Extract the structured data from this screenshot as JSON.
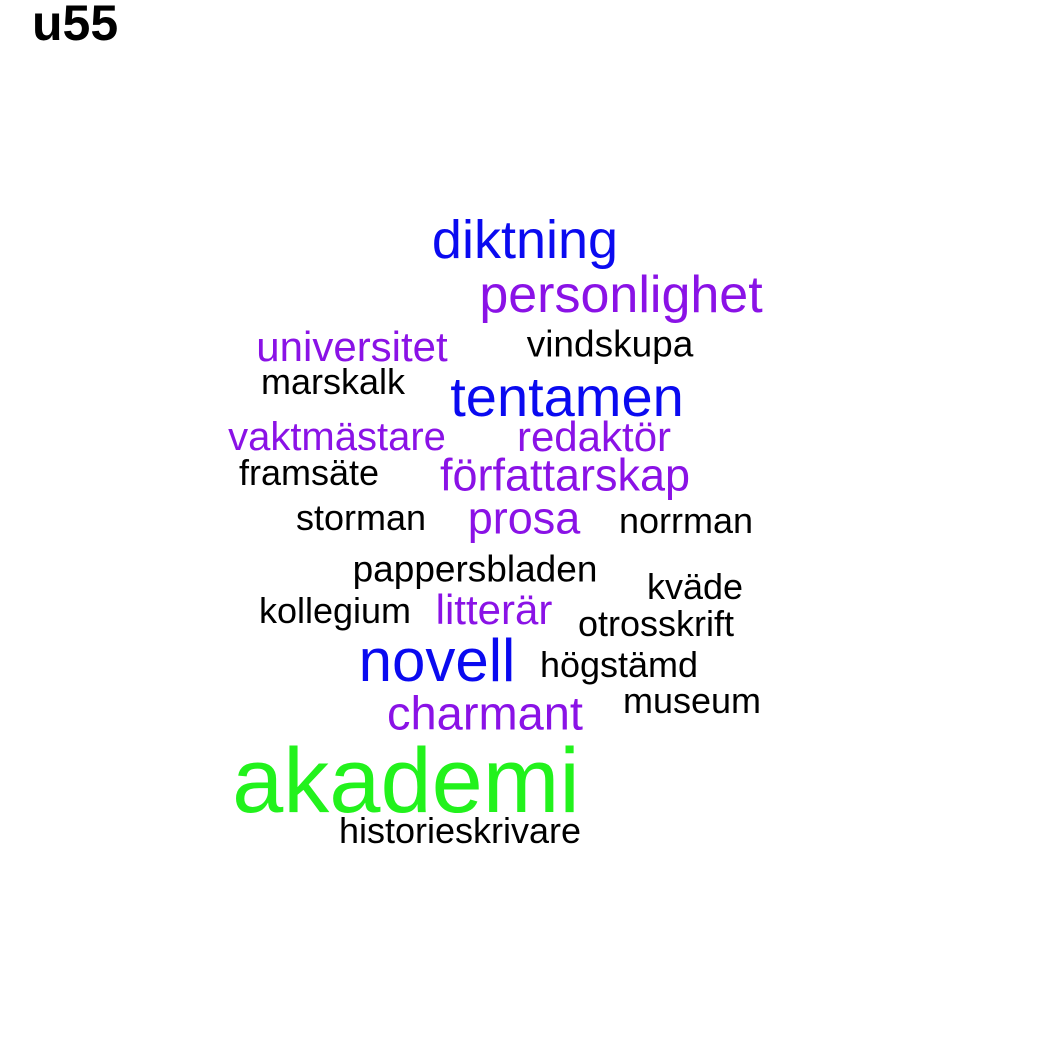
{
  "title": "u55",
  "colors": {
    "black": "#000000",
    "purple": "#8a12e6",
    "blue": "#0a0af0",
    "green": "#22f21c"
  },
  "words": [
    {
      "text": "diktning",
      "color": "blue"
    },
    {
      "text": "personlighet",
      "color": "purple"
    },
    {
      "text": "universitet",
      "color": "purple"
    },
    {
      "text": "vindskupa",
      "color": "black"
    },
    {
      "text": "marskalk",
      "color": "black"
    },
    {
      "text": "tentamen",
      "color": "blue"
    },
    {
      "text": "vaktmästare",
      "color": "purple"
    },
    {
      "text": "redaktör",
      "color": "purple"
    },
    {
      "text": "framsäte",
      "color": "black"
    },
    {
      "text": "författarskap",
      "color": "purple"
    },
    {
      "text": "storman",
      "color": "black"
    },
    {
      "text": "prosa",
      "color": "purple"
    },
    {
      "text": "norrman",
      "color": "black"
    },
    {
      "text": "pappersbladen",
      "color": "black"
    },
    {
      "text": "kväde",
      "color": "black"
    },
    {
      "text": "kollegium",
      "color": "black"
    },
    {
      "text": "litterär",
      "color": "purple"
    },
    {
      "text": "otrosskrift",
      "color": "black"
    },
    {
      "text": "novell",
      "color": "blue"
    },
    {
      "text": "högstämd",
      "color": "black"
    },
    {
      "text": "charmant",
      "color": "purple"
    },
    {
      "text": "museum",
      "color": "black"
    },
    {
      "text": "akademi",
      "color": "green"
    },
    {
      "text": "historieskrivare",
      "color": "black"
    }
  ]
}
